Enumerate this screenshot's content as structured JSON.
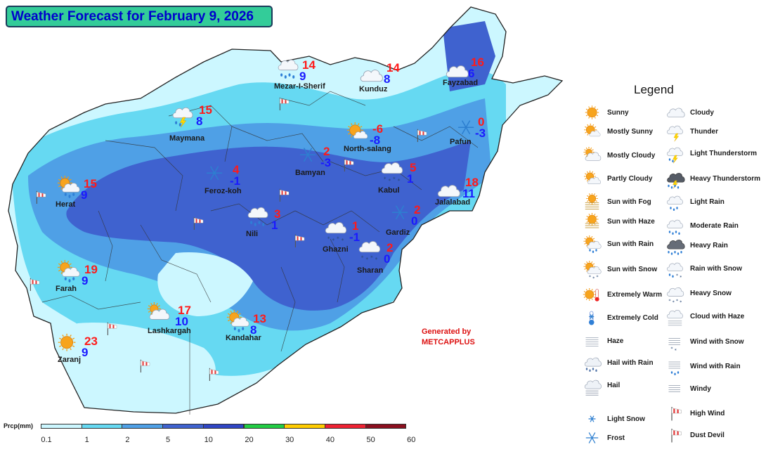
{
  "title": "Weather Forecast for February 9, 2026",
  "colors": {
    "accent": "#33cc99",
    "title_text": "#0000cc",
    "max_temp": "#ff1a1a",
    "min_temp": "#1a1aff"
  },
  "stations": [
    {
      "name": "Mezar-I-Sherif",
      "max": "14",
      "min": "9",
      "icon": "moderate-rain-icon"
    },
    {
      "name": "Kunduz",
      "max": "14",
      "min": "8",
      "icon": "cloudy-icon"
    },
    {
      "name": "Fayzabad",
      "max": "16",
      "min": "6",
      "icon": "cloudy-icon"
    },
    {
      "name": "Maymana",
      "max": "15",
      "min": "8",
      "icon": "light-thunderstorm-icon"
    },
    {
      "name": "North-salang",
      "max": "-6",
      "min": "-8",
      "icon": "mostly-sunny-icon"
    },
    {
      "name": "Pafun",
      "max": "0",
      "min": "-3",
      "icon": "frost-icon"
    },
    {
      "name": "Bamyan",
      "max": "2",
      "min": "-3",
      "icon": "frost-icon"
    },
    {
      "name": "Feroz-koh",
      "max": "4",
      "min": "-1",
      "icon": "frost-icon"
    },
    {
      "name": "Kabul",
      "max": "5",
      "min": "1",
      "icon": "heavy-snow-icon"
    },
    {
      "name": "Jalalabad",
      "max": "18",
      "min": "11",
      "icon": "cloudy-icon"
    },
    {
      "name": "Herat",
      "max": "15",
      "min": "9",
      "icon": "sun-with-rain-icon"
    },
    {
      "name": "Nili",
      "max": "3",
      "min": "1",
      "icon": "moderate-rain-icon"
    },
    {
      "name": "Gardiz",
      "max": "2",
      "min": "0",
      "icon": "frost-icon"
    },
    {
      "name": "Ghazni",
      "max": "1",
      "min": "-1",
      "icon": "heavy-snow-icon"
    },
    {
      "name": "Sharan",
      "max": "2",
      "min": "0",
      "icon": "heavy-snow-icon"
    },
    {
      "name": "Farah",
      "max": "19",
      "min": "9",
      "icon": "sun-with-rain-icon"
    },
    {
      "name": "Lashkargah",
      "max": "17",
      "min": "10",
      "icon": "mostly-cloudy-icon"
    },
    {
      "name": "Kandahar",
      "max": "13",
      "min": "8",
      "icon": "sun-with-rain-icon"
    },
    {
      "name": "Zaranj",
      "max": "23",
      "min": "9",
      "icon": "sunny-icon"
    }
  ],
  "legend": {
    "title": "Legend",
    "items": [
      {
        "label": "Sunny",
        "icon": "sunny-icon"
      },
      {
        "label": "Mostly Sunny",
        "icon": "mostly-sunny-icon"
      },
      {
        "label": "Mostly Cloudy",
        "icon": "mostly-cloudy-icon"
      },
      {
        "label": "Partly Cloudy",
        "icon": "partly-cloudy-icon"
      },
      {
        "label": "Sun with Fog",
        "icon": "sun-with-fog-icon"
      },
      {
        "label": "Sun with Haze",
        "icon": "sun-with-haze-icon"
      },
      {
        "label": "Sun with Rain",
        "icon": "sun-with-rain-icon"
      },
      {
        "label": "Sun with Snow",
        "icon": "sun-with-snow-icon"
      },
      {
        "label": "Extremely Warm",
        "icon": "extremely-warm-icon"
      },
      {
        "label": "Extremely Cold",
        "icon": "extremely-cold-icon"
      },
      {
        "label": "Haze",
        "icon": "haze-icon"
      },
      {
        "label": "Hail with Rain",
        "icon": "hail-with-rain-icon"
      },
      {
        "label": "Hail",
        "icon": "hail-icon"
      },
      {
        "label": "Light Snow",
        "icon": "light-snow-icon"
      },
      {
        "label": "Frost",
        "icon": "frost-icon"
      },
      {
        "label": "Cloudy",
        "icon": "cloudy-icon"
      },
      {
        "label": "Thunder",
        "icon": "thunder-icon"
      },
      {
        "label": "Light Thunderstorm",
        "icon": "light-thunderstorm-icon"
      },
      {
        "label": "Heavy Thunderstorm",
        "icon": "heavy-thunderstorm-icon"
      },
      {
        "label": "Light Rain",
        "icon": "light-rain-icon"
      },
      {
        "label": "Moderate Rain",
        "icon": "moderate-rain-icon"
      },
      {
        "label": "Heavy Rain",
        "icon": "heavy-rain-icon"
      },
      {
        "label": "Rain with Snow",
        "icon": "rain-with-snow-icon"
      },
      {
        "label": "Heavy Snow",
        "icon": "heavy-snow-icon"
      },
      {
        "label": "Cloud with Haze",
        "icon": "cloud-with-haze-icon"
      },
      {
        "label": "Wind with Snow",
        "icon": "wind-with-snow-icon"
      },
      {
        "label": "Wind with Rain",
        "icon": "wind-with-rain-icon"
      },
      {
        "label": "Windy",
        "icon": "windy-icon"
      },
      {
        "label": "High Wind",
        "icon": "high-wind-icon"
      },
      {
        "label": "Dust Devil",
        "icon": "dust-devil-icon"
      }
    ]
  },
  "credit": {
    "line1": "Generated by",
    "line2": "METCAPPLUS"
  },
  "precip_scale": {
    "title": "Prcp(mm)",
    "ticks": [
      "0.1",
      "1",
      "2",
      "5",
      "10",
      "20",
      "30",
      "40",
      "50",
      "60"
    ],
    "colors": [
      "#ccf7ff",
      "#66d9f2",
      "#4fa0e6",
      "#3f62cf",
      "#2f45c4",
      "#22cc44",
      "#ffcc00",
      "#ee2233",
      "#8b0f1f"
    ]
  }
}
